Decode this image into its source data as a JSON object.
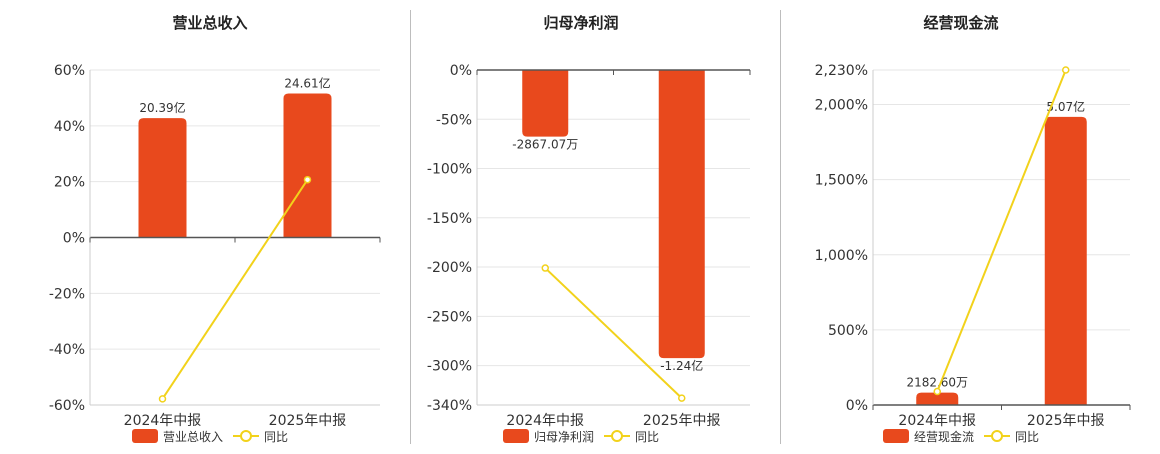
{
  "chart_data": [
    {
      "type": "bar",
      "title": "营业总收入",
      "categories": [
        "2024年中报",
        "2025年中报"
      ],
      "series": [
        {
          "name": "营业总收入",
          "type": "bar",
          "values": [
            20.39,
            24.61
          ],
          "labels": [
            "20.39亿",
            "24.61亿"
          ]
        },
        {
          "name": "同比",
          "type": "line",
          "values": [
            -57.8,
            20.7
          ]
        }
      ],
      "yaxis_ticks": [
        "60%",
        "40%",
        "20%",
        "0%",
        "-20%",
        "-40%",
        "-60%"
      ],
      "ylim": [
        -60,
        60
      ],
      "grid": true,
      "legend_position": "bottom"
    },
    {
      "type": "bar",
      "title": "归母净利润",
      "categories": [
        "2024年中报",
        "2025年中报"
      ],
      "series": [
        {
          "name": "归母净利润",
          "type": "bar",
          "values": [
            -0.2867,
            -1.24
          ],
          "labels": [
            "-2867.07万",
            "-1.24亿"
          ]
        },
        {
          "name": "同比",
          "type": "line",
          "values": [
            -201,
            -333
          ]
        }
      ],
      "yaxis_ticks": [
        "0%",
        "-50%",
        "-100%",
        "-150%",
        "-200%",
        "-250%",
        "-300%",
        "-340%"
      ],
      "ylim": [
        -340,
        0
      ],
      "grid": true,
      "legend_position": "bottom"
    },
    {
      "type": "bar",
      "title": "经营现金流",
      "categories": [
        "2024年中报",
        "2025年中报"
      ],
      "series": [
        {
          "name": "经营现金流",
          "type": "bar",
          "values": [
            0.2183,
            5.07
          ],
          "labels": [
            "2182.60万",
            "5.07亿"
          ]
        },
        {
          "name": "同比",
          "type": "line",
          "values": [
            90,
            2230
          ]
        }
      ],
      "yaxis_ticks": [
        "2,230%",
        "2,000%",
        "1,500%",
        "1,000%",
        "500%",
        "0%"
      ],
      "ylim": [
        0,
        2230
      ],
      "grid": true,
      "legend_position": "bottom"
    }
  ],
  "colors": {
    "bar": "#e8491d",
    "line": "#f2d21b",
    "grid": "#e6e6e6",
    "axis": "#555555",
    "text": "#333333",
    "divider": "#bdbdbd"
  }
}
